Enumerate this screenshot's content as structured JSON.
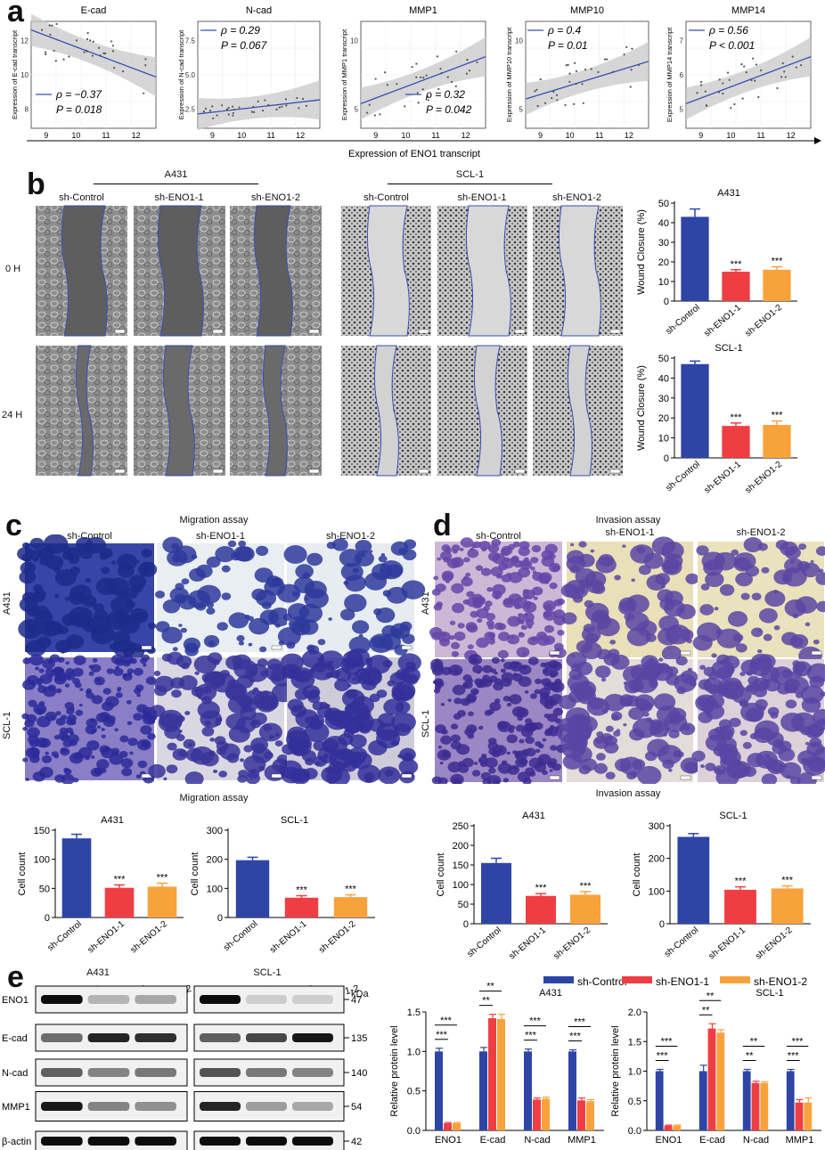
{
  "panels": {
    "a": "a",
    "b": "b",
    "c": "c",
    "d": "d",
    "e": "e"
  },
  "colors": {
    "control": "#2f45a6",
    "eno1_1": "#ef3e43",
    "eno1_2": "#f8a23c",
    "regline": "#3b4fb0",
    "band": "#c8c8c8"
  },
  "a": {
    "xlabel": "Expression of ENO1 transcript",
    "ticks": [
      "9",
      "10",
      "11",
      "12"
    ],
    "plots": [
      {
        "title": "E-cad",
        "ylabel": "Expression of E-cad transcript",
        "yticks": [
          "12",
          "10",
          "8"
        ],
        "rho": "ρ = −0.37",
        "p": "P = 0.018"
      },
      {
        "title": "N-cad",
        "ylabel": "Expression of N-cad transcript",
        "yticks": [
          "7.5",
          "5.0",
          "2.5"
        ],
        "rho": "ρ = 0.29",
        "p": "P = 0.067"
      },
      {
        "title": "MMP1",
        "ylabel": "Expression of MMP1 transcript",
        "yticks": [
          "10",
          "5"
        ],
        "rho": "ρ = 0.32",
        "p": "P = 0.042"
      },
      {
        "title": "MMP10",
        "ylabel": "Expression of MMP10 transcript",
        "yticks": [
          "10",
          "5"
        ],
        "rho": "ρ = 0.4",
        "p": "P = 0.01"
      },
      {
        "title": "MMP14",
        "ylabel": "Expression of MMP14 transcript",
        "yticks": [
          "7",
          "6",
          "5"
        ],
        "rho": "ρ = 0.56",
        "p": "P < 0.001"
      }
    ]
  },
  "b": {
    "group_a431": "A431",
    "group_scl1": "SCL-1",
    "cols": [
      "sh-Control",
      "sh-ENO1-1",
      "sh-ENO1-2"
    ],
    "rows": [
      "0 H",
      "24 H"
    ]
  },
  "c": {
    "title": "Migration assay",
    "cols": [
      "sh-Control",
      "sh-ENO1-1",
      "sh-ENO1-2"
    ],
    "rows": [
      "A431",
      "SCL-1"
    ]
  },
  "d": {
    "title": "Invasion assay",
    "cols": [
      "sh-Control",
      "sh-ENO1-1",
      "sh-ENO1-2"
    ],
    "rows": [
      "A431",
      "SCL-1"
    ]
  },
  "e": {
    "a431": "A431",
    "scl1": "SCL-1",
    "kda": "kDa",
    "lanes": [
      "sh-Control",
      "sh-ENO1-1",
      "sh-ENO1-2"
    ],
    "proteins": [
      "ENO1",
      "E-cad",
      "N-cad",
      "MMP1",
      "β-actin"
    ],
    "weights": [
      "47",
      "135",
      "140",
      "54",
      "42"
    ],
    "legend": [
      "sh-Control",
      "sh-ENO1-1",
      "sh-ENO1-2"
    ]
  },
  "chart_data": [
    {
      "id": "b-a431",
      "type": "bar",
      "title": "A431",
      "ylabel": "Wound Closure (%)",
      "categories": [
        "sh-Control",
        "sh-ENO1-1",
        "sh-ENO1-2"
      ],
      "values": [
        43,
        15,
        16
      ],
      "errors": [
        4,
        1,
        1.5
      ],
      "ylim": [
        0,
        50
      ],
      "yticks": [
        0,
        10,
        20,
        30,
        40,
        50
      ],
      "sig": [
        "",
        "***",
        "***"
      ]
    },
    {
      "id": "b-scl1",
      "type": "bar",
      "title": "SCL-1",
      "ylabel": "Wound Closure (%)",
      "categories": [
        "sh-Control",
        "sh-ENO1-1",
        "sh-ENO1-2"
      ],
      "values": [
        47,
        16,
        16.5
      ],
      "errors": [
        1.5,
        1.5,
        2
      ],
      "ylim": [
        0,
        50
      ],
      "yticks": [
        0,
        10,
        20,
        30,
        40,
        50
      ],
      "sig": [
        "",
        "***",
        "***"
      ]
    },
    {
      "id": "c-a431",
      "type": "bar",
      "title": "A431",
      "ylabel": "Cell count",
      "categories": [
        "sh-Control",
        "sh-ENO1-1",
        "sh-ENO1-2"
      ],
      "values": [
        136,
        51,
        53
      ],
      "errors": [
        7,
        5,
        6
      ],
      "ylim": [
        0,
        150
      ],
      "yticks": [
        0,
        50,
        100,
        150
      ],
      "sig": [
        "",
        "***",
        "***"
      ]
    },
    {
      "id": "c-scl1",
      "type": "bar",
      "title": "SCL-1",
      "ylabel": "Cell count",
      "categories": [
        "sh-Control",
        "sh-ENO1-1",
        "sh-ENO1-2"
      ],
      "values": [
        197,
        68,
        70
      ],
      "errors": [
        10,
        7,
        8
      ],
      "ylim": [
        0,
        300
      ],
      "yticks": [
        0,
        100,
        200,
        300
      ],
      "sig": [
        "",
        "***",
        "***"
      ]
    },
    {
      "id": "d-a431",
      "type": "bar",
      "title": "A431",
      "ylabel": "Cell count",
      "categories": [
        "sh-Control",
        "sh-ENO1-1",
        "sh-ENO1-2"
      ],
      "values": [
        155,
        71,
        74
      ],
      "errors": [
        12,
        6,
        8
      ],
      "ylim": [
        0,
        250
      ],
      "yticks": [
        0,
        50,
        100,
        150,
        200,
        250
      ],
      "sig": [
        "",
        "***",
        "***"
      ]
    },
    {
      "id": "d-scl1",
      "type": "bar",
      "title": "SCL-1",
      "ylabel": "Cell count",
      "categories": [
        "sh-Control",
        "sh-ENO1-1",
        "sh-ENO1-2"
      ],
      "values": [
        266,
        104,
        108
      ],
      "errors": [
        10,
        9,
        8
      ],
      "ylim": [
        0,
        300
      ],
      "yticks": [
        0,
        100,
        200,
        300
      ],
      "sig": [
        "",
        "***",
        "***"
      ]
    },
    {
      "id": "e-a431",
      "type": "bar",
      "title": "A431",
      "ylabel": "Relative protein level",
      "categories": [
        "ENO1",
        "E-cad",
        "N-cad",
        "MMP1"
      ],
      "ylim": [
        0,
        1.5
      ],
      "yticks": [
        0.0,
        0.5,
        1.0,
        1.5
      ],
      "series": [
        {
          "name": "sh-Control",
          "values": [
            1.0,
            1.0,
            1.0,
            1.0
          ],
          "errors": [
            0.04,
            0.05,
            0.03,
            0.02
          ]
        },
        {
          "name": "sh-ENO1-1",
          "values": [
            0.09,
            1.42,
            0.39,
            0.38
          ],
          "errors": [
            0.01,
            0.05,
            0.02,
            0.03
          ]
        },
        {
          "name": "sh-ENO1-2",
          "values": [
            0.09,
            1.41,
            0.4,
            0.37
          ],
          "errors": [
            0.01,
            0.06,
            0.02,
            0.02
          ]
        }
      ],
      "sig": [
        [
          "***",
          "***"
        ],
        [
          "**",
          "**"
        ],
        [
          "***",
          "***"
        ],
        [
          "***",
          "***"
        ]
      ]
    },
    {
      "id": "e-scl1",
      "type": "bar",
      "title": "SCL-1",
      "ylabel": "Relative protein level",
      "categories": [
        "ENO1",
        "E-cad",
        "N-cad",
        "MMP1"
      ],
      "ylim": [
        0,
        2.0
      ],
      "yticks": [
        0.0,
        0.5,
        1.0,
        1.5,
        2.0
      ],
      "series": [
        {
          "name": "sh-Control",
          "values": [
            1.0,
            1.0,
            1.0,
            1.0
          ],
          "errors": [
            0.03,
            0.1,
            0.03,
            0.03
          ]
        },
        {
          "name": "sh-ENO1-1",
          "values": [
            0.08,
            1.72,
            0.8,
            0.47
          ],
          "errors": [
            0.01,
            0.08,
            0.03,
            0.05
          ]
        },
        {
          "name": "sh-ENO1-2",
          "values": [
            0.08,
            1.65,
            0.8,
            0.47
          ],
          "errors": [
            0.01,
            0.05,
            0.02,
            0.08
          ]
        }
      ],
      "sig": [
        [
          "***",
          "***"
        ],
        [
          "**",
          "**"
        ],
        [
          "**",
          "**"
        ],
        [
          "***",
          "***"
        ]
      ]
    }
  ]
}
